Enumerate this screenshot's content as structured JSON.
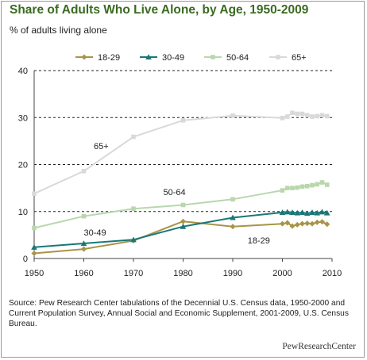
{
  "title": "Share of Adults Who Live Alone, by Age, 1950-2009",
  "subtitle": "% of adults living alone",
  "source": "Source: Pew Research Center tabulations of the Decennial U.S. Census data, 1950-2000 and Current Population Survey, Annual Social and Economic Supplement, 2001-2009, U.S. Census Bureau.",
  "brand": "PewResearchCenter",
  "chart_data": {
    "type": "line",
    "xlim": [
      1950,
      2010
    ],
    "ylim": [
      0,
      40
    ],
    "x_ticks": [
      "1950",
      "1960",
      "1970",
      "1980",
      "1990",
      "2000",
      "2010"
    ],
    "y_ticks": [
      "0",
      "10",
      "20",
      "30",
      "40"
    ],
    "grid": "horizontal dashed",
    "legend_placement": "top",
    "series": [
      {
        "name": "18-29",
        "color": "#a89448",
        "marker": "diamond",
        "annotation": "18-29",
        "x": [
          1950,
          1960,
          1970,
          1980,
          1990,
          2000,
          2001,
          2002,
          2003,
          2004,
          2005,
          2006,
          2007,
          2008,
          2009
        ],
        "y": [
          1.1,
          2.0,
          3.8,
          7.9,
          6.8,
          7.4,
          7.6,
          6.9,
          7.2,
          7.4,
          7.5,
          7.4,
          7.7,
          7.8,
          7.3
        ]
      },
      {
        "name": "30-49",
        "color": "#1a7777",
        "marker": "triangle",
        "annotation": "30-49",
        "x": [
          1950,
          1960,
          1970,
          1980,
          1990,
          2000,
          2001,
          2002,
          2003,
          2004,
          2005,
          2006,
          2007,
          2008,
          2009
        ],
        "y": [
          2.4,
          3.2,
          4.0,
          6.8,
          8.7,
          9.8,
          9.9,
          9.8,
          9.7,
          9.8,
          9.6,
          9.8,
          9.7,
          9.9,
          9.7
        ]
      },
      {
        "name": "50-64",
        "color": "#b9d7ad",
        "marker": "square",
        "annotation": "50-64",
        "x": [
          1950,
          1960,
          1970,
          1980,
          1990,
          2000,
          2001,
          2002,
          2003,
          2004,
          2005,
          2006,
          2007,
          2008,
          2009
        ],
        "y": [
          6.5,
          9.0,
          10.6,
          11.4,
          12.6,
          14.5,
          15.0,
          15.0,
          15.1,
          15.3,
          15.4,
          15.6,
          15.8,
          16.2,
          15.7
        ]
      },
      {
        "name": "65+",
        "color": "#d9d9d9",
        "marker": "square",
        "annotation": "65+",
        "x": [
          1950,
          1960,
          1970,
          1980,
          1990,
          2000,
          2001,
          2002,
          2003,
          2004,
          2005,
          2006,
          2007,
          2008,
          2009
        ],
        "y": [
          13.8,
          18.6,
          25.9,
          29.4,
          30.4,
          29.9,
          30.2,
          31.0,
          30.8,
          30.8,
          30.5,
          30.2,
          30.3,
          30.5,
          30.3
        ]
      }
    ]
  }
}
